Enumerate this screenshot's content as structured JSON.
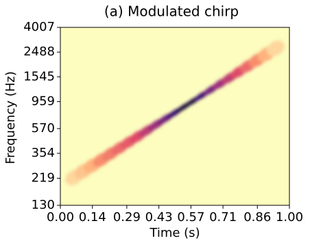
{
  "chart_data": {
    "type": "spectrogram",
    "title": "(a) Modulated chirp",
    "x_label": "Time (s)",
    "y_label": "Frequency (Hz)",
    "xlim": [
      0,
      1
    ],
    "ylim": [
      130,
      4007
    ],
    "yscale": "log",
    "colormap": "magma",
    "xticks": [
      {
        "value": 0,
        "label": "0.00"
      },
      {
        "value": 0.14,
        "label": "0.14"
      },
      {
        "value": 0.29,
        "label": "0.29"
      },
      {
        "value": 0.43,
        "label": "0.43"
      },
      {
        "value": 0.57,
        "label": "0.57"
      },
      {
        "value": 0.71,
        "label": "0.71"
      },
      {
        "value": 0.86,
        "label": "0.86"
      },
      {
        "value": 1,
        "label": "1.00"
      }
    ],
    "yticks": [
      130,
      219,
      354,
      570,
      959,
      1545,
      2488,
      4007
    ],
    "x": [
      0.06,
      0.1,
      0.14,
      0.18,
      0.22,
      0.26,
      0.3,
      0.34,
      0.38,
      0.42,
      0.46,
      0.5,
      0.54,
      0.58,
      0.62,
      0.66,
      0.7,
      0.74,
      0.78,
      0.82,
      0.86,
      0.9,
      0.94
    ],
    "values": [
      223,
      250,
      280,
      313,
      351,
      393,
      440,
      492,
      551,
      617,
      691,
      773,
      866,
      969,
      1085,
      1215,
      1360,
      1522,
      1704,
      1908,
      2136,
      2391,
      2677
    ],
    "intensity": [
      0.1,
      0.15,
      0.2,
      0.3,
      0.35,
      0.4,
      0.45,
      0.5,
      0.6,
      0.7,
      0.8,
      0.9,
      0.95,
      0.95,
      0.9,
      0.8,
      0.7,
      0.6,
      0.5,
      0.4,
      0.3,
      0.2,
      0.1
    ]
  }
}
